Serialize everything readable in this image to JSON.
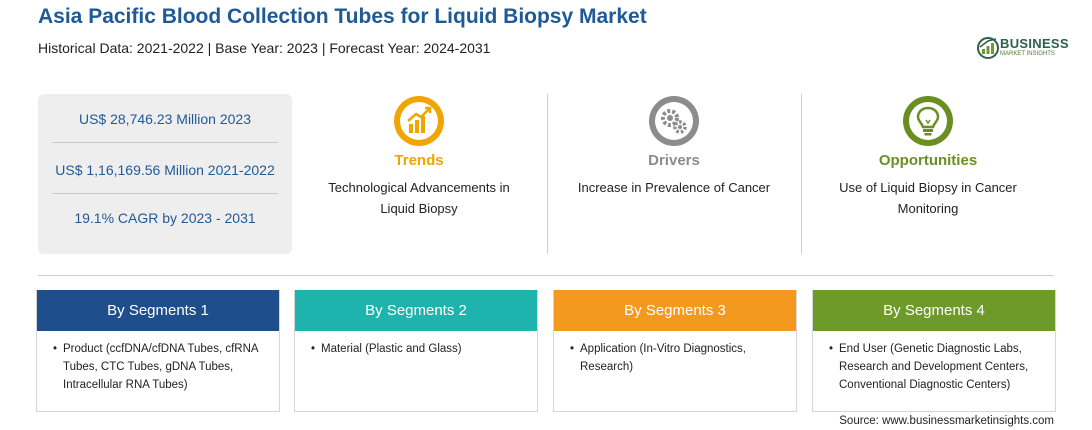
{
  "header": {
    "title": "Asia Pacific Blood Collection Tubes for Liquid Biopsy Market",
    "subtitle": "Historical Data: 2021-2022 | Base Year: 2023 | Forecast Year: 2024-2031"
  },
  "logo": {
    "name": "BUSINESS",
    "tagline": "MARKET INSIGHTS"
  },
  "stats": [
    "US$ 28,746.23 Million 2023",
    "US$ 1,16,169.56 Million 2021-2022",
    "19.1% CAGR by 2023 - 2031"
  ],
  "highlights": [
    {
      "heading": "Trends",
      "text": "Technological Advancements in Liquid Biopsy",
      "icon": "rising-chart-icon",
      "color": "#f0a500"
    },
    {
      "heading": "Drivers",
      "text": "Increase in Prevalence of Cancer",
      "icon": "gears-icon",
      "color": "#8c8c8c"
    },
    {
      "heading": "Opportunities",
      "text": "Use of Liquid Biopsy in Cancer Monitoring",
      "icon": "lightbulb-icon",
      "color": "#6b8e23"
    }
  ],
  "segments": [
    {
      "title": "By Segments 1",
      "text": "Product (ccfDNA/cfDNA Tubes, cfRNA Tubes, CTC Tubes, gDNA Tubes, Intracellular RNA Tubes)",
      "color": "#1f4e8c"
    },
    {
      "title": "By Segments 2",
      "text": "Material (Plastic and Glass)",
      "color": "#1fb3ad"
    },
    {
      "title": "By Segments 3",
      "text": "Application (In-Vitro Diagnostics, Research)",
      "color": "#f39a1e"
    },
    {
      "title": "By Segments 4",
      "text": "End User (Genetic Diagnostic Labs, Research and Development Centers, Conventional Diagnostic Centers)",
      "color": "#6e9a2a"
    }
  ],
  "bullet": "•",
  "source": "Source: www.businessmarketinsights.com"
}
